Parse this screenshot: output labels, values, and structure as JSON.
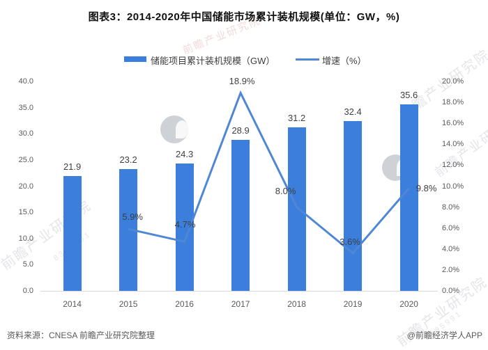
{
  "title": "图表3：2014-2020年中国储能市场累计装机规模(单位：GW，%)",
  "legend": {
    "bar_label": "储能项目累计装机规模（GW）",
    "line_label": "增速（%）"
  },
  "chart_data": {
    "type": "bar",
    "subtype": "bar+line combo, dual axis",
    "title": "图表3：2014-2020年中国储能市场累计装机规模(单位：GW，%)",
    "categories": [
      "2014",
      "2015",
      "2016",
      "2017",
      "2018",
      "2019",
      "2020"
    ],
    "series": [
      {
        "name": "储能项目累计装机规模（GW）",
        "type": "bar",
        "axis": "left",
        "unit": "GW",
        "color": "#3B7EDB",
        "values": [
          21.9,
          23.2,
          24.3,
          28.9,
          31.2,
          32.4,
          35.6
        ],
        "labels": [
          "21.9",
          "23.2",
          "24.3",
          "28.9",
          "31.2",
          "32.4",
          "35.6"
        ]
      },
      {
        "name": "增速（%）",
        "type": "line",
        "axis": "right",
        "unit": "%",
        "color": "#4F87D5",
        "values": [
          null,
          5.9,
          4.7,
          18.9,
          8.0,
          3.6,
          9.8
        ],
        "labels": [
          "",
          "5.9%",
          "4.7%",
          "18.9%",
          "8.0%",
          "3.6%",
          "9.8%"
        ]
      }
    ],
    "left_axis": {
      "min": 0,
      "max": 40,
      "ticks": [
        "0.0",
        "5.0",
        "10.0",
        "15.0",
        "20.0",
        "25.0",
        "30.0",
        "35.0",
        "40.0"
      ]
    },
    "right_axis": {
      "min": 0,
      "max": 20,
      "ticks": [
        "0.0%",
        "2.0%",
        "4.0%",
        "6.0%",
        "8.0%",
        "10.0%",
        "12.0%",
        "14.0%",
        "16.0%",
        "18.0%",
        "20.0%"
      ]
    },
    "grid": false,
    "legend_position": "top-center",
    "background": "#ffffff"
  },
  "footer": {
    "source": "资料来源：CNESA 前瞻产业研究院整理",
    "credit": "@前瞻经济学人APP"
  },
  "watermark": {
    "text": "前瞻产业研究院",
    "digits": "8395991"
  }
}
